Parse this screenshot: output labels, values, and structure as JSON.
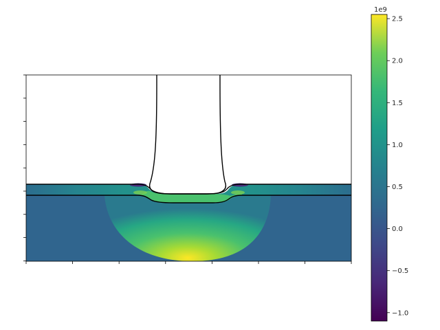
{
  "chart_data": {
    "type": "heatmap",
    "title": "",
    "xlabel": "",
    "ylabel": "",
    "x_tick_labels": [
      "",
      "",
      "",
      "",
      "",
      "",
      "",
      ""
    ],
    "y_tick_labels": [
      "",
      "",
      "",
      "",
      "",
      "",
      "",
      "",
      ""
    ],
    "colormap": "viridis",
    "colorbar": {
      "range": [
        -1100000000.0,
        2550000000.0
      ],
      "offset_label": "1e9",
      "ticks": [
        -1.0,
        -0.5,
        0.0,
        0.5,
        1.0,
        1.5,
        2.0,
        2.5
      ],
      "tick_labels": [
        "−1.0",
        "−0.5",
        "0.0",
        "0.5",
        "1.0",
        "1.5",
        "2.0",
        "2.5"
      ]
    },
    "field_description": [
      {
        "region": "substrate background",
        "value": 0.0
      },
      {
        "region": "film layer",
        "value": 0.6
      },
      {
        "region": "indentation zone under indenter",
        "value": 1.1
      },
      {
        "region": "peak at bottom of indentation zone",
        "value": 2.5
      },
      {
        "region": "film edges near indenter",
        "value": -0.8
      }
    ],
    "grid": false,
    "legend": "none"
  }
}
